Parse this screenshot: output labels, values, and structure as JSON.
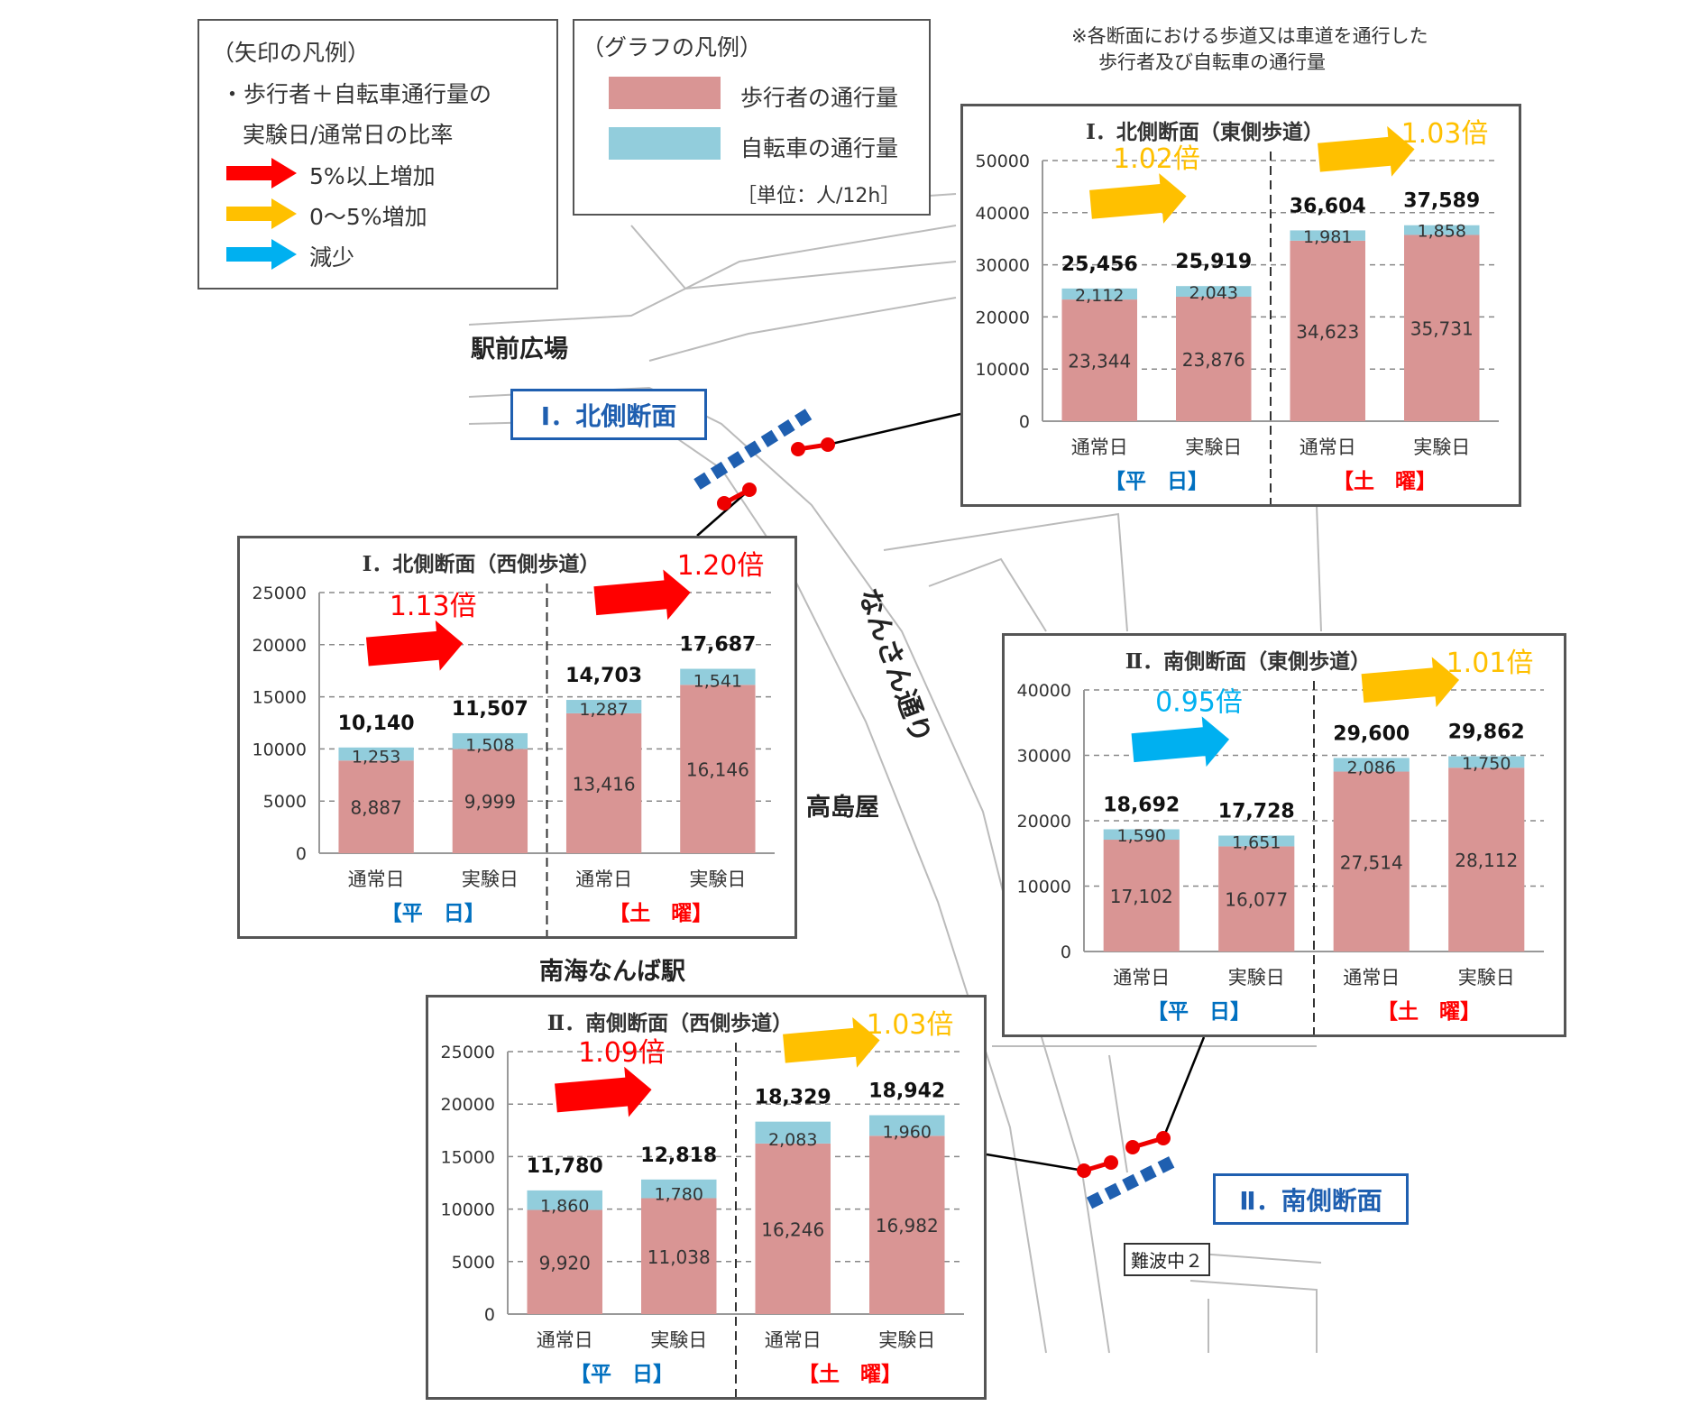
{
  "arrow_legend": {
    "title": "（矢印の凡例）",
    "line1": "・歩行者＋自転車通行量の",
    "line2": "実験日/通常日の比率",
    "items": [
      {
        "label": "5%以上増加",
        "color": "#ff0000"
      },
      {
        "label": "0～5%増加",
        "color": "#ffc000"
      },
      {
        "label": "減少",
        "color": "#00b0f0"
      }
    ]
  },
  "graph_legend": {
    "title": "（グラフの凡例）",
    "pedestrian": {
      "label": "歩行者の通行量",
      "color": "#d99594"
    },
    "bicycle": {
      "label": "自転車の通行量",
      "color": "#92cddc"
    },
    "unit": "［単位：人/12h］"
  },
  "note": {
    "line1": "※各断面における歩道又は車道を通行した",
    "line2": "歩行者及び自転車の通行量"
  },
  "map": {
    "station_square": "駅前広場",
    "takashimaya": "高島屋",
    "nankai": "南海なんば駅",
    "street": "なんさん通り",
    "north_section": "Ⅰ．北側断面",
    "south_section": "Ⅱ．南側断面",
    "namba": "難波中２"
  },
  "chart_data": [
    {
      "type": "bar",
      "stacked": true,
      "title": "Ⅰ．北側断面（東側歩道）",
      "ylim": [
        0,
        50000
      ],
      "yticks": [
        0,
        10000,
        20000,
        30000,
        40000,
        50000
      ],
      "grid": true,
      "categories": [
        "通常日",
        "実験日",
        "通常日",
        "実験日"
      ],
      "groups": [
        "【平　日】",
        "【土　曜】"
      ],
      "series": [
        {
          "name": "歩行者の通行量",
          "values": [
            23344,
            23876,
            34623,
            35731
          ]
        },
        {
          "name": "自転車の通行量",
          "values": [
            2112,
            2043,
            1981,
            1858
          ]
        }
      ],
      "totals": [
        25456,
        25919,
        36604,
        37589
      ],
      "ratios": [
        {
          "label": "1.02倍",
          "color": "#ffc000"
        },
        {
          "label": "1.03倍",
          "color": "#ffc000"
        }
      ]
    },
    {
      "type": "bar",
      "stacked": true,
      "title": "Ⅰ．北側断面（西側歩道）",
      "ylim": [
        0,
        25000
      ],
      "yticks": [
        0,
        5000,
        10000,
        15000,
        20000,
        25000
      ],
      "grid": true,
      "categories": [
        "通常日",
        "実験日",
        "通常日",
        "実験日"
      ],
      "groups": [
        "【平　日】",
        "【土　曜】"
      ],
      "series": [
        {
          "name": "歩行者の通行量",
          "values": [
            8887,
            9999,
            13416,
            16146
          ]
        },
        {
          "name": "自転車の通行量",
          "values": [
            1253,
            1508,
            1287,
            1541
          ]
        }
      ],
      "totals": [
        10140,
        11507,
        14703,
        17687
      ],
      "ratios": [
        {
          "label": "1.13倍",
          "color": "#ff0000"
        },
        {
          "label": "1.20倍",
          "color": "#ff0000"
        }
      ]
    },
    {
      "type": "bar",
      "stacked": true,
      "title": "Ⅱ．南側断面（東側歩道）",
      "ylim": [
        0,
        40000
      ],
      "yticks": [
        0,
        10000,
        20000,
        30000,
        40000
      ],
      "grid": true,
      "categories": [
        "通常日",
        "実験日",
        "通常日",
        "実験日"
      ],
      "groups": [
        "【平　日】",
        "【土　曜】"
      ],
      "series": [
        {
          "name": "歩行者の通行量",
          "values": [
            17102,
            16077,
            27514,
            28112
          ]
        },
        {
          "name": "自転車の通行量",
          "values": [
            1590,
            1651,
            2086,
            1750
          ]
        }
      ],
      "totals": [
        18692,
        17728,
        29600,
        29862
      ],
      "ratios": [
        {
          "label": "0.95倍",
          "color": "#00b0f0"
        },
        {
          "label": "1.01倍",
          "color": "#ffc000"
        }
      ]
    },
    {
      "type": "bar",
      "stacked": true,
      "title": "Ⅱ．南側断面（西側歩道）",
      "ylim": [
        0,
        25000
      ],
      "yticks": [
        0,
        5000,
        10000,
        15000,
        20000,
        25000
      ],
      "grid": true,
      "categories": [
        "通常日",
        "実験日",
        "通常日",
        "実験日"
      ],
      "groups": [
        "【平　日】",
        "【土　曜】"
      ],
      "series": [
        {
          "name": "歩行者の通行量",
          "values": [
            9920,
            11038,
            16246,
            16982
          ]
        },
        {
          "name": "自転車の通行量",
          "values": [
            1860,
            1780,
            2083,
            1960
          ]
        }
      ],
      "totals": [
        11780,
        12818,
        18329,
        18942
      ],
      "ratios": [
        {
          "label": "1.09倍",
          "color": "#ff0000"
        },
        {
          "label": "1.03倍",
          "color": "#ffc000"
        }
      ]
    }
  ]
}
